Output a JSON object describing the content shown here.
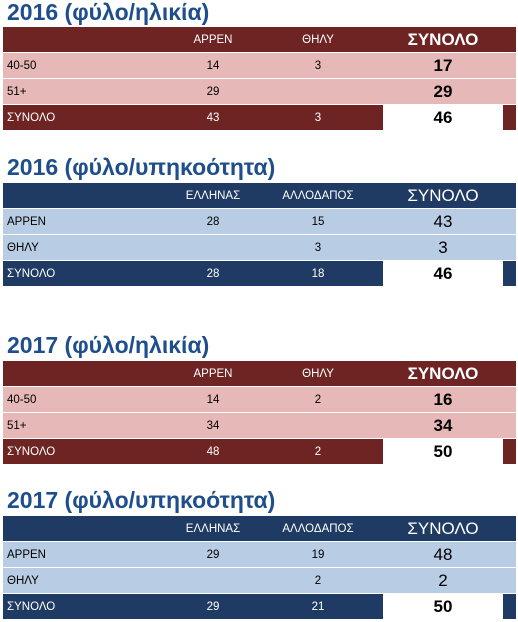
{
  "tables": [
    {
      "title": "2016 (φύλο/ηλικία)",
      "header": [
        "",
        "ΑΡΡΕΝ",
        "ΘΗΛΥ",
        "ΣΥΝΟΛΟ"
      ],
      "rows": [
        [
          "40-50",
          "14",
          "3",
          "17"
        ],
        [
          "51+",
          "29",
          "",
          "29"
        ]
      ],
      "total": [
        "ΣΥΝΟΛΟ",
        "43",
        "3",
        "46"
      ]
    },
    {
      "title": "2016 (φύλο/υπηκοότητα)",
      "header": [
        "",
        "ΕΛΛΗΝΑΣ",
        "ΑΛΛΟΔΑΠΟΣ",
        "ΣΥΝΟΛΟ"
      ],
      "rows": [
        [
          "ΑΡΡΕΝ",
          "28",
          "15",
          "43"
        ],
        [
          "ΘΗΛΥ",
          "",
          "3",
          "3"
        ]
      ],
      "total": [
        "ΣΥΝΟΛΟ",
        "28",
        "18",
        "46"
      ]
    },
    {
      "title": "2017 (φύλο/ηλικία)",
      "header": [
        "",
        "ΑΡΡΕΝ",
        "ΘΗΛΥ",
        "ΣΥΝΟΛΟ"
      ],
      "rows": [
        [
          "40-50",
          "14",
          "2",
          "16"
        ],
        [
          "51+",
          "34",
          "",
          "34"
        ]
      ],
      "total": [
        "ΣΥΝΟΛΟ",
        "48",
        "2",
        "50"
      ]
    },
    {
      "title": "2017 (φύλο/υπηκοότητα)",
      "header": [
        "",
        "ΕΛΛΗΝΑΣ",
        "ΑΛΛΟΔΑΠΟΣ",
        "ΣΥΝΟΛΟ"
      ],
      "rows": [
        [
          "ΑΡΡΕΝ",
          "29",
          "19",
          "48"
        ],
        [
          "ΘΗΛΥ",
          "",
          "2",
          "2"
        ]
      ],
      "total": [
        "ΣΥΝΟΛΟ",
        "29",
        "21",
        "50"
      ]
    }
  ],
  "colors": {
    "title": "#1f4e8c",
    "red_header": "#6f2424",
    "red_body": "#e6b8b7",
    "blue_header": "#1f3b63",
    "blue_body": "#b8cce4"
  }
}
